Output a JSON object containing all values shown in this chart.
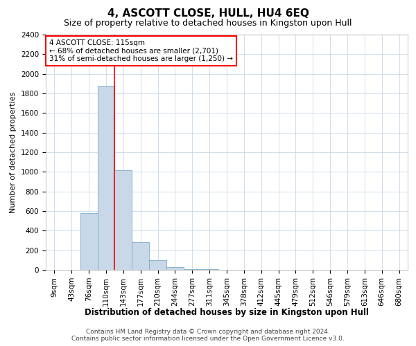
{
  "title": "4, ASCOTT CLOSE, HULL, HU4 6EQ",
  "subtitle": "Size of property relative to detached houses in Kingston upon Hull",
  "xlabel": "Distribution of detached houses by size in Kingston upon Hull",
  "ylabel": "Number of detached properties",
  "footer_line1": "Contains HM Land Registry data © Crown copyright and database right 2024.",
  "footer_line2": "Contains public sector information licensed under the Open Government Licence v3.0.",
  "annotation_line1": "4 ASCOTT CLOSE: 115sqm",
  "annotation_line2": "← 68% of detached houses are smaller (2,701)",
  "annotation_line3": "31% of semi-detached houses are larger (1,250) →",
  "categories": [
    "9sqm",
    "43sqm",
    "76sqm",
    "110sqm",
    "143sqm",
    "177sqm",
    "210sqm",
    "244sqm",
    "277sqm",
    "311sqm",
    "345sqm",
    "378sqm",
    "412sqm",
    "445sqm",
    "479sqm",
    "512sqm",
    "546sqm",
    "579sqm",
    "613sqm",
    "646sqm",
    "680sqm"
  ],
  "values": [
    0,
    0,
    580,
    1880,
    1020,
    280,
    100,
    30,
    10,
    5,
    2,
    1,
    0,
    0,
    0,
    0,
    0,
    0,
    0,
    0,
    0
  ],
  "bar_color": "#c8d8e8",
  "bar_edge_color": "#7aaac8",
  "red_line_x": 3.5,
  "ylim": [
    0,
    2400
  ],
  "yticks": [
    0,
    200,
    400,
    600,
    800,
    1000,
    1200,
    1400,
    1600,
    1800,
    2000,
    2200,
    2400
  ],
  "background_color": "#ffffff",
  "grid_color": "#c8d8e8",
  "title_fontsize": 11,
  "subtitle_fontsize": 9,
  "xlabel_fontsize": 8.5,
  "ylabel_fontsize": 8,
  "tick_fontsize": 7.5,
  "annotation_fontsize": 7.5,
  "footer_fontsize": 6.5
}
